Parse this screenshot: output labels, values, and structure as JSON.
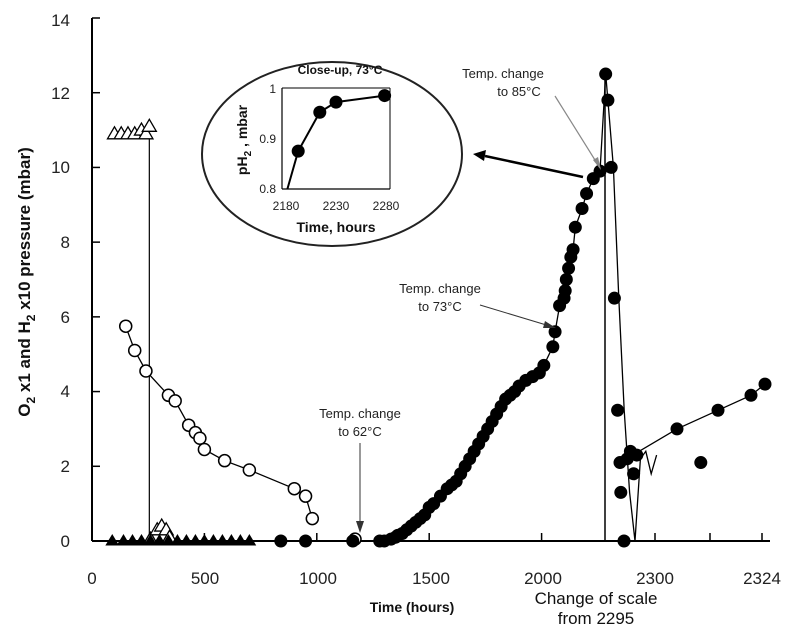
{
  "chart_data": {
    "type": "scatter",
    "xlabel": "Time (hours)",
    "ylabel_parts": [
      "O",
      "2",
      " x1  and H",
      "2",
      " x10  pressure (mbar)"
    ],
    "ylim": [
      0,
      14
    ],
    "y_ticks": [
      "0",
      "2",
      "4",
      "6",
      "8",
      "10",
      "12",
      "14"
    ],
    "x_ticks": [
      "0",
      "500",
      "1000",
      "1500",
      "2000",
      "2300",
      "2324"
    ],
    "x_break_note": [
      "Change of scale",
      "from 2295"
    ],
    "series": [
      {
        "marker": "open-triangle",
        "x": [
          100,
          130,
          160,
          190,
          220,
          240,
          255
        ],
        "y": [
          10.9,
          10.9,
          10.9,
          10.9,
          11.0,
          10.9,
          11.1
        ]
      },
      {
        "marker": "open-triangle",
        "x": [
          260,
          290,
          310,
          330,
          345
        ],
        "y": [
          0.05,
          0.3,
          0.4,
          0.3,
          0.1
        ]
      },
      {
        "marker": "filled-triangle",
        "x": [
          90,
          140,
          180,
          220,
          260,
          300,
          340,
          380,
          420,
          460,
          500,
          540,
          580,
          620,
          660,
          700
        ],
        "y": [
          0,
          0,
          0,
          0,
          0,
          0,
          0,
          0,
          0,
          0,
          0,
          0,
          0,
          0,
          0,
          0
        ]
      },
      {
        "marker": "open-circle",
        "x": [
          150,
          190,
          240,
          340,
          370,
          430,
          460,
          480,
          500,
          590,
          700,
          900,
          950,
          980,
          1170
        ],
        "y": [
          5.75,
          5.1,
          4.55,
          3.9,
          3.75,
          3.1,
          2.9,
          2.75,
          2.45,
          2.15,
          1.9,
          1.4,
          1.2,
          0.6,
          0.05
        ]
      },
      {
        "marker": "filled-circle",
        "x": [
          840,
          950,
          1160,
          1280,
          1300,
          1330,
          1350,
          1360,
          1380,
          1400,
          1420,
          1440,
          1460,
          1480,
          1500,
          1520,
          1550,
          1580,
          1600,
          1620,
          1640,
          1660,
          1680,
          1700,
          1720,
          1740,
          1760,
          1780,
          1800,
          1820,
          1840,
          1860,
          1880,
          1900,
          1930,
          1960,
          1990,
          2010,
          2050,
          2060,
          2080,
          2100,
          2105,
          2110,
          2120,
          2130,
          2140,
          2150,
          2180,
          2200,
          2230,
          2260,
          2285,
          2295,
          2296,
          2297,
          2298,
          2299,
          2300,
          2301,
          2302,
          2303,
          2304,
          2324
        ],
        "y": [
          0,
          0,
          0,
          0,
          0,
          0.05,
          0.1,
          0.15,
          0.2,
          0.3,
          0.4,
          0.5,
          0.6,
          0.7,
          0.9,
          1.0,
          1.2,
          1.4,
          1.5,
          1.6,
          1.8,
          2.0,
          2.2,
          2.4,
          2.6,
          2.8,
          3.0,
          3.2,
          3.4,
          3.6,
          3.8,
          3.9,
          4.0,
          4.15,
          4.3,
          4.4,
          4.5,
          4.7,
          5.2,
          5.6,
          6.3,
          6.5,
          6.7,
          7.0,
          7.3,
          7.6,
          7.8,
          8.4,
          8.9,
          9.3,
          9.7,
          9.9,
          12.5,
          11.8,
          10.0,
          6.5,
          3.5,
          1.3,
          0,
          2.2,
          2.4,
          1.8,
          2.3,
          2.1
        ]
      }
    ],
    "secondary_x_segment": {
      "x": [
        2295,
        2310,
        2315,
        2320,
        2322,
        2324
      ],
      "y": [
        2.1,
        3.0,
        3.5,
        3.9,
        4.0,
        4.2
      ]
    },
    "annotations": [
      {
        "lines": [
          "Temp. change",
          "to 62°C"
        ]
      },
      {
        "lines": [
          "Temp. change",
          "to 73°C"
        ]
      },
      {
        "lines": [
          "Temp. change",
          "to 85°C"
        ]
      }
    ],
    "inset": {
      "title": "Close-up, 73°C",
      "xlabel": "Time, hours",
      "ylabel_parts": [
        "pH",
        "2",
        " , mbar"
      ],
      "x_ticks": [
        "2180",
        "2230",
        "2280"
      ],
      "y_ticks": [
        "0.8",
        "0.9",
        "1"
      ],
      "xlim": [
        2180,
        2280
      ],
      "ylim": [
        0.8,
        1.0
      ],
      "x": [
        2185,
        2195,
        2215,
        2230,
        2275
      ],
      "y": [
        0.8,
        0.875,
        0.952,
        0.972,
        0.985
      ]
    }
  }
}
